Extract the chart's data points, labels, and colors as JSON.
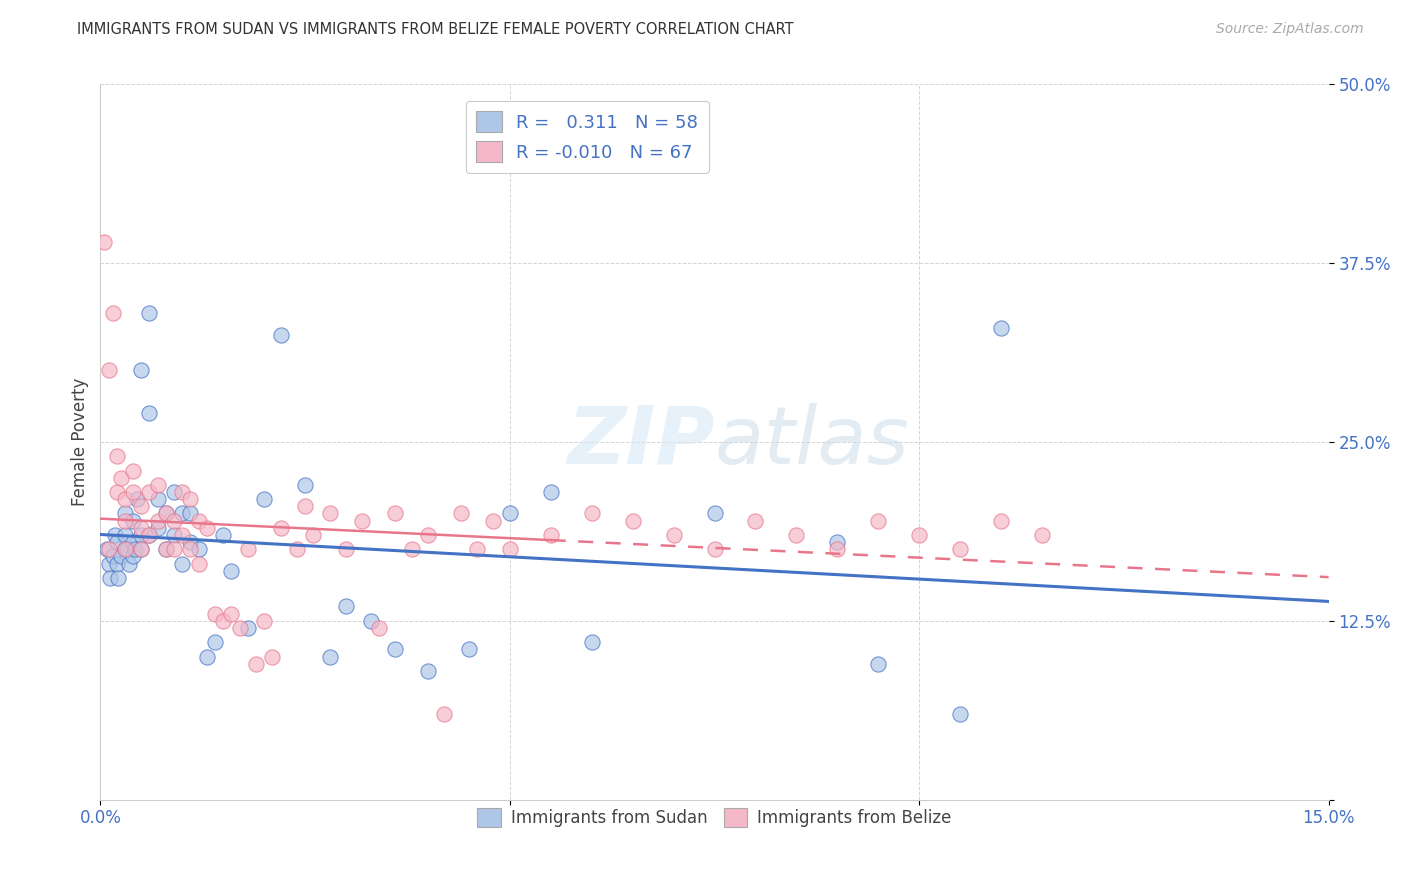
{
  "title": "IMMIGRANTS FROM SUDAN VS IMMIGRANTS FROM BELIZE FEMALE POVERTY CORRELATION CHART",
  "source": "Source: ZipAtlas.com",
  "ylabel_label": "Female Poverty",
  "sudan_R": 0.311,
  "sudan_N": 58,
  "belize_R": -0.01,
  "belize_N": 67,
  "sudan_color": "#aec6e8",
  "belize_color": "#f4b8c8",
  "sudan_line_color": "#4472C4",
  "belize_line_color": "#e8768a",
  "sudan_x": [
    0.0008,
    0.001,
    0.0012,
    0.0015,
    0.0018,
    0.002,
    0.002,
    0.0022,
    0.0025,
    0.003,
    0.003,
    0.003,
    0.0032,
    0.0035,
    0.004,
    0.004,
    0.004,
    0.0042,
    0.0045,
    0.005,
    0.005,
    0.005,
    0.006,
    0.006,
    0.006,
    0.007,
    0.007,
    0.008,
    0.008,
    0.009,
    0.009,
    0.01,
    0.01,
    0.011,
    0.011,
    0.012,
    0.013,
    0.014,
    0.015,
    0.016,
    0.018,
    0.02,
    0.022,
    0.025,
    0.028,
    0.03,
    0.033,
    0.036,
    0.04,
    0.045,
    0.05,
    0.055,
    0.06,
    0.075,
    0.09,
    0.095,
    0.105,
    0.11
  ],
  "sudan_y": [
    0.175,
    0.165,
    0.155,
    0.17,
    0.185,
    0.18,
    0.165,
    0.155,
    0.17,
    0.185,
    0.175,
    0.2,
    0.175,
    0.165,
    0.18,
    0.195,
    0.17,
    0.175,
    0.21,
    0.185,
    0.175,
    0.3,
    0.34,
    0.27,
    0.185,
    0.19,
    0.21,
    0.2,
    0.175,
    0.215,
    0.185,
    0.2,
    0.165,
    0.18,
    0.2,
    0.175,
    0.1,
    0.11,
    0.185,
    0.16,
    0.12,
    0.21,
    0.325,
    0.22,
    0.1,
    0.135,
    0.125,
    0.105,
    0.09,
    0.105,
    0.2,
    0.215,
    0.11,
    0.2,
    0.18,
    0.095,
    0.06,
    0.33
  ],
  "belize_x": [
    0.0005,
    0.001,
    0.001,
    0.0015,
    0.002,
    0.002,
    0.0025,
    0.003,
    0.003,
    0.003,
    0.004,
    0.004,
    0.005,
    0.005,
    0.005,
    0.006,
    0.006,
    0.007,
    0.007,
    0.008,
    0.008,
    0.009,
    0.009,
    0.01,
    0.01,
    0.011,
    0.011,
    0.012,
    0.012,
    0.013,
    0.014,
    0.015,
    0.016,
    0.017,
    0.018,
    0.019,
    0.02,
    0.021,
    0.022,
    0.024,
    0.025,
    0.026,
    0.028,
    0.03,
    0.032,
    0.034,
    0.036,
    0.038,
    0.04,
    0.042,
    0.044,
    0.046,
    0.048,
    0.05,
    0.055,
    0.06,
    0.065,
    0.07,
    0.075,
    0.08,
    0.085,
    0.09,
    0.095,
    0.1,
    0.105,
    0.11,
    0.115
  ],
  "belize_y": [
    0.39,
    0.3,
    0.175,
    0.34,
    0.24,
    0.215,
    0.225,
    0.21,
    0.195,
    0.175,
    0.23,
    0.215,
    0.205,
    0.19,
    0.175,
    0.215,
    0.185,
    0.22,
    0.195,
    0.2,
    0.175,
    0.195,
    0.175,
    0.215,
    0.185,
    0.21,
    0.175,
    0.195,
    0.165,
    0.19,
    0.13,
    0.125,
    0.13,
    0.12,
    0.175,
    0.095,
    0.125,
    0.1,
    0.19,
    0.175,
    0.205,
    0.185,
    0.2,
    0.175,
    0.195,
    0.12,
    0.2,
    0.175,
    0.185,
    0.06,
    0.2,
    0.175,
    0.195,
    0.175,
    0.185,
    0.2,
    0.195,
    0.185,
    0.175,
    0.195,
    0.185,
    0.175,
    0.195,
    0.185,
    0.175,
    0.195,
    0.185
  ],
  "xlim": [
    0.0,
    0.15
  ],
  "ylim": [
    0.0,
    0.5
  ],
  "background_color": "#ffffff",
  "grid_color": "#d0d0d0"
}
